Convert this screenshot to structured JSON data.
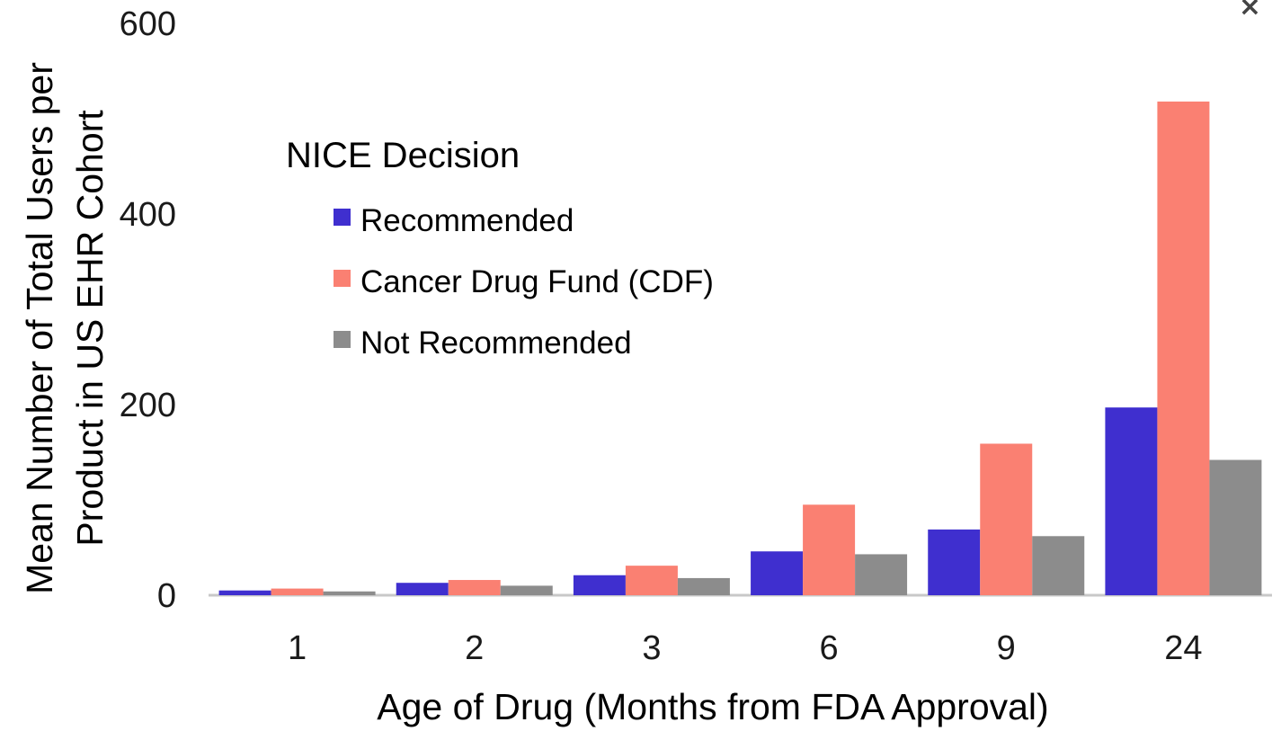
{
  "chart_data": {
    "type": "bar",
    "title": "",
    "xlabel": "Age of Drug (Months from FDA Approval)",
    "ylabel": [
      "Mean Number of Total Users per",
      "Product in US EHR Cohort"
    ],
    "categories": [
      "1",
      "2",
      "3",
      "6",
      "9",
      "24"
    ],
    "ylim": [
      0,
      600
    ],
    "yticks": [
      "0",
      "200",
      "400",
      "600"
    ],
    "grid": false,
    "legend": {
      "title": "NICE Decision",
      "placement": "upper-left"
    },
    "series": [
      {
        "name": "Recommended",
        "color": "#3f2fcf",
        "values": [
          5,
          13,
          21,
          46,
          69,
          197
        ]
      },
      {
        "name": "Cancer Drug Fund (CDF)",
        "color": "#fa8072",
        "values": [
          7,
          16,
          31,
          95,
          159,
          518
        ]
      },
      {
        "name": "Not Recommended",
        "color": "#8c8c8c",
        "values": [
          4,
          10,
          18,
          43,
          62,
          142
        ]
      }
    ]
  },
  "window": {
    "close_icon": "close-icon",
    "close_glyph": "×"
  }
}
